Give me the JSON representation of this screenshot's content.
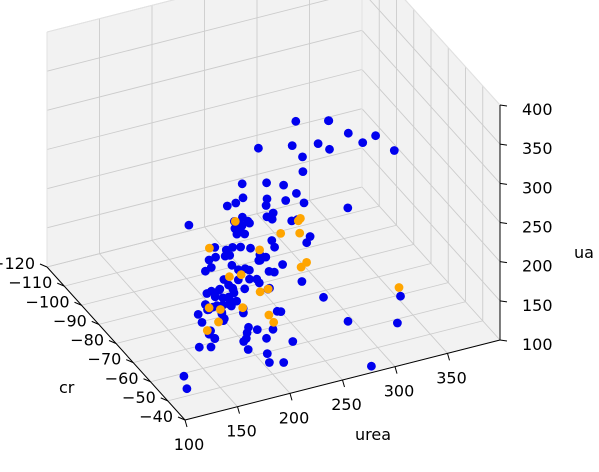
{
  "chart_data": {
    "type": "scatter",
    "projection": "3d",
    "title": "",
    "xlabel": "cr",
    "ylabel": "urea",
    "zlabel": "ua",
    "xlim": [
      -120,
      -40
    ],
    "ylim": [
      100,
      400
    ],
    "zlim": [
      100,
      400
    ],
    "x_ticks": [
      -120,
      -110,
      -100,
      -90,
      -80,
      -70,
      -60,
      -50,
      -40
    ],
    "y_ticks": [
      100,
      150,
      200,
      250,
      300,
      350
    ],
    "z_ticks": [
      100,
      150,
      200,
      250,
      300,
      350,
      400
    ],
    "grid": true,
    "legend": "none",
    "series": [
      {
        "color": "#0000ee",
        "points": [
          [
            -45.3,
            311,
            139
          ],
          [
            -48.4,
            319,
            163
          ],
          [
            -42.1,
            281,
            102
          ],
          [
            -64.3,
            295,
            245
          ],
          [
            -48.4,
            269,
            148
          ],
          [
            -52.8,
            215,
            103
          ],
          [
            -60.3,
            211,
            117
          ],
          [
            -61.1,
            226,
            144
          ],
          [
            -62.3,
            248,
            172
          ],
          [
            -75.7,
            358,
            269
          ],
          [
            -57.1,
            127,
            105
          ],
          [
            -51.1,
            120,
            106
          ],
          [
            -58,
            208,
            104
          ],
          [
            -61.4,
            219,
            123
          ],
          [
            -81,
            250,
            178
          ],
          [
            -69.7,
            165,
            130
          ],
          [
            -55.9,
            258,
            164
          ],
          [
            -76.3,
            205,
            196
          ],
          [
            -80.5,
            216,
            199
          ],
          [
            -58.9,
            154,
            145
          ],
          [
            -62.8,
            174,
            146
          ],
          [
            -66.3,
            214,
            172
          ],
          [
            -84.2,
            201,
            178
          ],
          [
            -79.5,
            272,
            201
          ],
          [
            -72.5,
            166,
            133
          ],
          [
            -92.5,
            190,
            190
          ],
          [
            -92.8,
            227,
            201
          ],
          [
            -93.3,
            242,
            223
          ],
          [
            -99.7,
            268,
            244
          ],
          [
            -74.8,
            178,
            150
          ],
          [
            -63.5,
            163,
            135
          ],
          [
            -61.1,
            163,
            131
          ],
          [
            -70.2,
            180,
            145
          ],
          [
            -59.1,
            145,
            131
          ],
          [
            -54.4,
            182,
            141
          ],
          [
            -58.6,
            191,
            142
          ],
          [
            -65.9,
            198,
            146
          ],
          [
            -55.4,
            228,
            119
          ],
          [
            -74.8,
            208,
            170
          ],
          [
            -70.6,
            192,
            151
          ],
          [
            -75.9,
            196,
            159
          ],
          [
            -74.5,
            242,
            188
          ],
          [
            -79.2,
            207,
            178
          ],
          [
            -74.6,
            182,
            152
          ],
          [
            -78.1,
            182,
            169
          ],
          [
            -69.4,
            194,
            163
          ],
          [
            -68.7,
            204,
            162
          ],
          [
            -75.2,
            277,
            188
          ],
          [
            -57.7,
            185,
            128
          ],
          [
            -69.8,
            229,
            173
          ],
          [
            -72.3,
            246,
            170
          ],
          [
            -55.3,
            194,
            146
          ],
          [
            -56.6,
            152,
            135
          ],
          [
            -59.9,
            161,
            135
          ],
          [
            -63.7,
            218,
            169
          ],
          [
            -72,
            214,
            163
          ],
          [
            -54.5,
            184,
            126
          ],
          [
            -47.7,
            193,
            123
          ],
          [
            -59.4,
            191,
            133
          ],
          [
            -65.5,
            177,
            147
          ],
          [
            -59.6,
            220,
            150
          ],
          [
            -71.6,
            237,
            165
          ],
          [
            -72.3,
            269,
            190
          ],
          [
            -69.1,
            190,
            146
          ],
          [
            -66.7,
            193,
            155
          ],
          [
            -84.1,
            220,
            196
          ],
          [
            -85.5,
            229,
            193
          ],
          [
            -82.7,
            227,
            190
          ],
          [
            -79.6,
            218,
            184
          ],
          [
            -77.7,
            187,
            173
          ],
          [
            -78.7,
            226,
            182
          ],
          [
            -79.4,
            203,
            178
          ],
          [
            -76.1,
            204,
            174
          ],
          [
            -81.2,
            207,
            180
          ],
          [
            -73.9,
            213,
            172
          ],
          [
            -73.9,
            226,
            178
          ],
          [
            -73.9,
            227,
            185
          ],
          [
            -72.5,
            225,
            182
          ],
          [
            -72.9,
            231,
            183
          ],
          [
            -71.2,
            202,
            168
          ],
          [
            -68.8,
            194,
            160
          ],
          [
            -71.8,
            181,
            152
          ],
          [
            -65.3,
            222,
            165
          ],
          [
            -70.8,
            219,
            164
          ],
          [
            -75.1,
            219,
            165
          ],
          [
            -74.6,
            190,
            152
          ],
          [
            -72.6,
            199,
            155
          ],
          [
            -74.4,
            198,
            155
          ],
          [
            -73.2,
            187,
            155
          ],
          [
            -71.3,
            178,
            141
          ],
          [
            -70.7,
            173,
            141
          ],
          [
            -70.8,
            172,
            141
          ],
          [
            -69.8,
            185,
            145
          ],
          [
            -72.2,
            189,
            147
          ],
          [
            -72.6,
            173,
            143
          ],
          [
            -70.4,
            192,
            149
          ],
          [
            -68.5,
            191,
            145
          ],
          [
            -69.8,
            184,
            136
          ],
          [
            -65.2,
            197,
            142
          ],
          [
            -66.5,
            181,
            137
          ],
          [
            -80.8,
            190,
            174
          ],
          [
            -81.3,
            197,
            174
          ],
          [
            -85.1,
            227,
            188
          ],
          [
            -86.5,
            228,
            195
          ],
          [
            -87.5,
            225,
            195
          ],
          [
            -91.6,
            240,
            210
          ],
          [
            -91.5,
            233,
            206
          ],
          [
            -87.1,
            232,
            199
          ],
          [
            -85.1,
            234,
            198
          ],
          [
            -84.8,
            235,
            196
          ],
          [
            -82.6,
            248,
            205
          ],
          [
            -85.5,
            252,
            211
          ],
          [
            -83.2,
            255,
            206
          ],
          [
            -84.5,
            269,
            214
          ],
          [
            -86.2,
            254,
            217
          ],
          [
            -90.1,
            260,
            226
          ],
          [
            -79.2,
            266,
            202
          ],
          [
            -82,
            252,
            202
          ],
          [
            -87.3,
            290,
            237
          ],
          [
            -90.6,
            295,
            246
          ],
          [
            -98.1,
            301,
            271
          ],
          [
            -93.5,
            290,
            255
          ],
          [
            -86.3,
            270,
            229
          ],
          [
            -84.4,
            279,
            220
          ],
          [
            -81.2,
            281,
            215
          ],
          [
            -88.9,
            318,
            252
          ],
          [
            -91.9,
            312,
            254
          ],
          [
            -93.2,
            324,
            276
          ],
          [
            -94.8,
            327,
            271
          ],
          [
            -88.4,
            335,
            268
          ],
          [
            -85.5,
            344,
            260
          ],
          [
            -84.7,
            355,
            267
          ]
        ]
      },
      {
        "color": "#ffa500",
        "points": [
          [
            -59.6,
            336,
            141
          ],
          [
            -64.5,
            174,
            156
          ],
          [
            -63,
            159,
            138
          ],
          [
            -66.8,
            167,
            155
          ],
          [
            -72.5,
            264,
            160
          ],
          [
            -61,
            219,
            133
          ],
          [
            -62.6,
            217,
            139
          ],
          [
            -82,
            240,
            167
          ],
          [
            -80.7,
            258,
            185
          ],
          [
            -78.8,
            273,
            185
          ],
          [
            -84.5,
            281,
            184
          ],
          [
            -83.3,
            281,
            190
          ],
          [
            -92.4,
            234,
            180
          ],
          [
            -85.5,
            198,
            175
          ],
          [
            -64.4,
            172,
            141
          ],
          [
            -74.4,
            210,
            164
          ],
          [
            -67.1,
            216,
            158
          ],
          [
            -74.5,
            199,
            165
          ],
          [
            -66.2,
            198,
            146
          ],
          [
            -65.4,
            221,
            164
          ],
          [
            -73.6,
            271,
            161
          ]
        ]
      }
    ]
  }
}
